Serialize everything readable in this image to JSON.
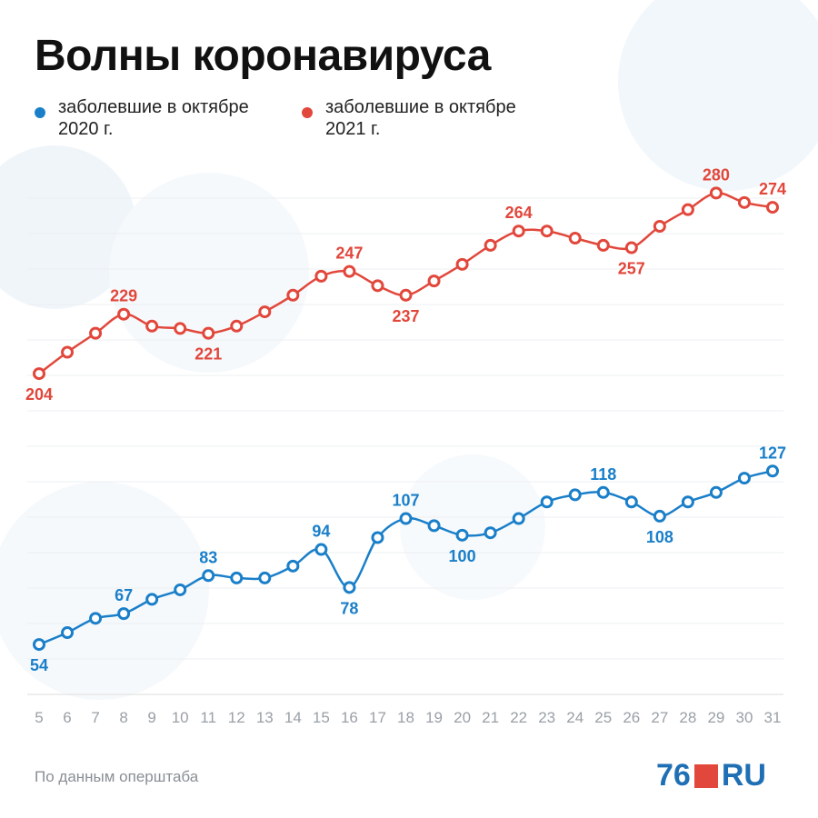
{
  "chart_data": {
    "type": "line",
    "title": "Волны коронавируса",
    "x": [
      5,
      6,
      7,
      8,
      9,
      10,
      11,
      12,
      13,
      14,
      15,
      16,
      17,
      18,
      19,
      20,
      21,
      22,
      23,
      24,
      25,
      26,
      27,
      28,
      29,
      30,
      31
    ],
    "xlim": [
      5,
      31
    ],
    "xticks": [
      5,
      6,
      7,
      8,
      9,
      10,
      11,
      12,
      13,
      14,
      15,
      16,
      17,
      18,
      19,
      20,
      21,
      22,
      23,
      24,
      25,
      26,
      27,
      28,
      29,
      30,
      31
    ],
    "ylim": [
      33,
      243
    ],
    "y2lim": [
      69,
      279
    ],
    "grid": true,
    "series": [
      {
        "name": "заболевшие в октябре 2020 г.",
        "color": "#1a7fc9",
        "axis": "y",
        "values": [
          54,
          59,
          65,
          67,
          73,
          77,
          83,
          82,
          82,
          87,
          94,
          78,
          99,
          107,
          104,
          100,
          101,
          107,
          114,
          117,
          118,
          114,
          108,
          114,
          118,
          124,
          127
        ]
      },
      {
        "name": "заболевшие в октябре 2021 г.",
        "color": "#e2473b",
        "axis": "y2",
        "values": [
          204,
          213,
          221,
          229,
          224,
          223,
          221,
          224,
          230,
          237,
          245,
          247,
          241,
          237,
          243,
          250,
          258,
          264,
          264,
          261,
          258,
          257,
          266,
          273,
          280,
          276,
          274
        ]
      }
    ],
    "source": "По данным оперштаба",
    "logo": {
      "left": "76",
      "right": "RU"
    }
  }
}
